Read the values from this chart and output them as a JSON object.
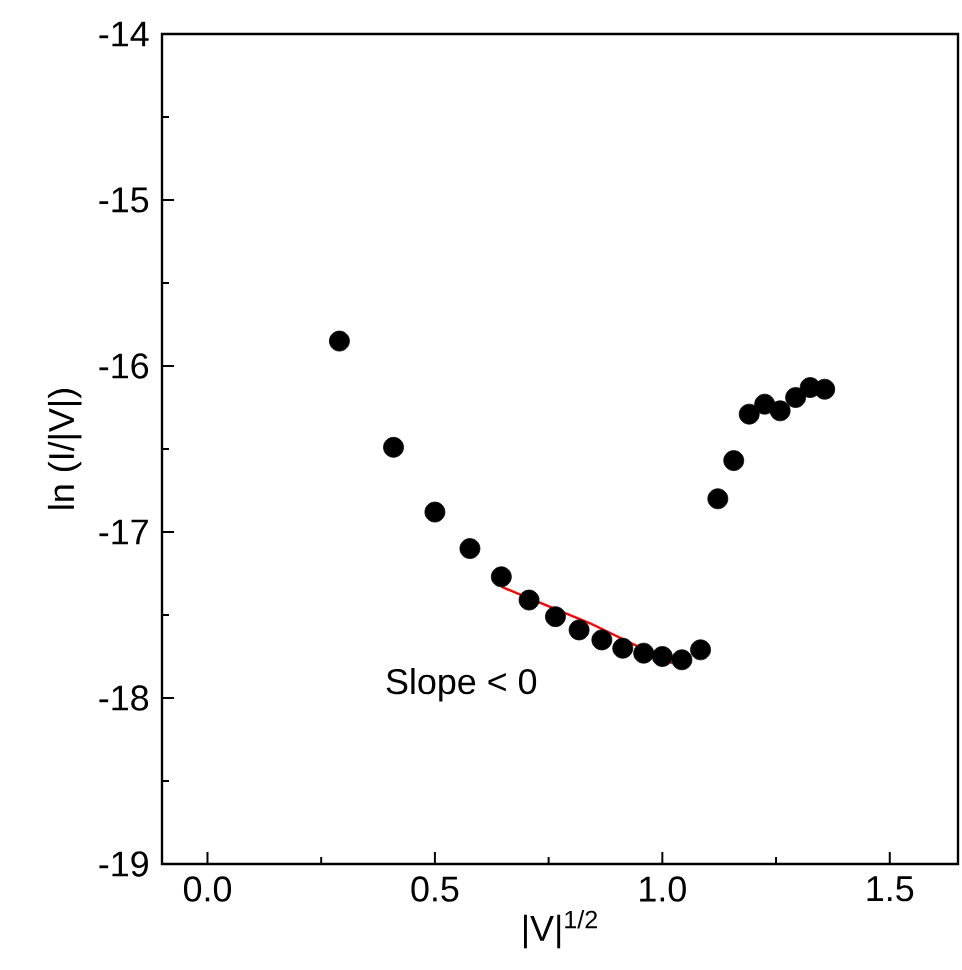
{
  "chart_data": {
    "type": "scatter",
    "xlabel": "|V|$^{1/2}$",
    "ylabel": "ln (I/|V|)",
    "xlim": [
      -0.1,
      1.65
    ],
    "ylim": [
      -19,
      -14
    ],
    "xticks": [
      {
        "value": 0,
        "label": "0.0"
      },
      0.5,
      {
        "value": 1,
        "label": "1.0"
      },
      1.5
    ],
    "yticks": [
      -19,
      -18,
      -17,
      -16,
      -15,
      -14
    ],
    "marker": "circle",
    "series": [
      {
        "color": "#000000",
        "x": [
          0.29,
          0.409,
          0.5,
          0.577,
          0.646,
          0.707,
          0.765,
          0.817,
          0.867,
          0.913,
          0.959,
          1.0,
          1.043,
          1.084,
          1.122,
          1.157,
          1.191,
          1.225,
          1.259,
          1.293,
          1.325,
          1.357
        ],
        "values": [
          -15.85,
          -16.49,
          -16.88,
          -17.1,
          -17.27,
          -17.41,
          -17.51,
          -17.59,
          -17.65,
          -17.7,
          -17.73,
          -17.75,
          -17.77,
          -17.71,
          -16.8,
          -16.57,
          -16.29,
          -16.23,
          -16.27,
          -16.19,
          -16.13,
          -16.14
        ]
      },
      {
        "type": "line",
        "color": "#ff0000",
        "marker": "none",
        "x": [
          0.646,
          0.841,
          1.022
        ],
        "values": [
          -17.33,
          -17.55,
          -17.79
        ]
      }
    ],
    "annotations": [
      "Slope < 0"
    ]
  }
}
